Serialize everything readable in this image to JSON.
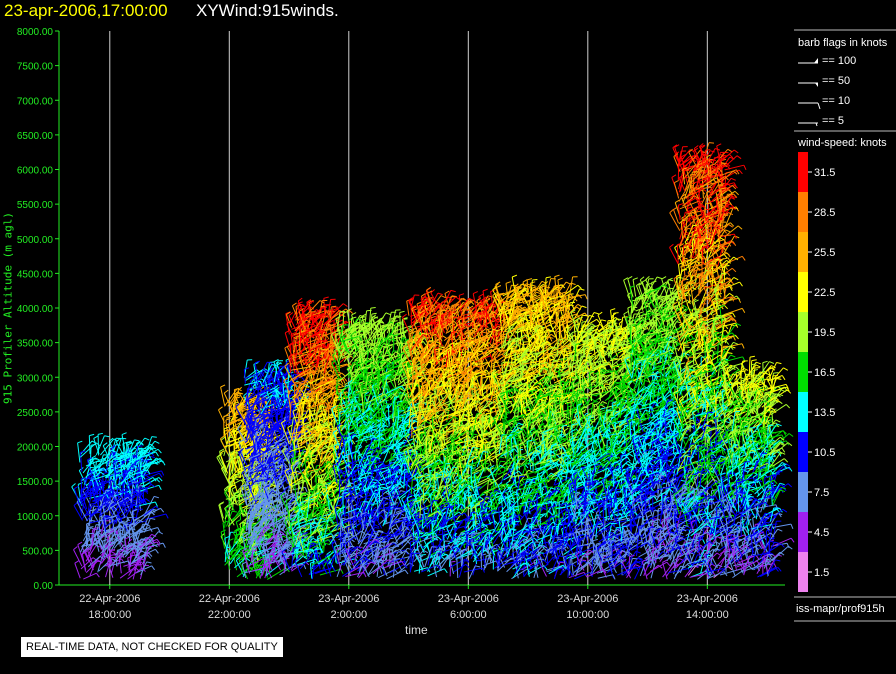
{
  "header": {
    "timestamp": "23-apr-2006,17:00:00",
    "plot_name": "XYWind:915winds."
  },
  "footer": {
    "qc_notice": "REAL-TIME DATA, NOT CHECKED FOR QUALITY",
    "source_label": "iss-mapr/prof915h"
  },
  "legend": {
    "barb_title": "barb flags in knots",
    "barbs": [
      {
        "label": "== 100",
        "type": "pennant"
      },
      {
        "label": "== 50",
        "type": "flag"
      },
      {
        "label": "== 10",
        "type": "full"
      },
      {
        "label": "== 5",
        "type": "half"
      }
    ],
    "speed_title": "wind-speed: knots",
    "bins": [
      {
        "label": "31.5",
        "color": "#ff0000"
      },
      {
        "label": "28.5",
        "color": "#ff7f00"
      },
      {
        "label": "25.5",
        "color": "#ffb000"
      },
      {
        "label": "22.5",
        "color": "#ffff00"
      },
      {
        "label": "19.5",
        "color": "#a6ff2a"
      },
      {
        "label": "16.5",
        "color": "#00dd00"
      },
      {
        "label": "13.5",
        "color": "#00ffff"
      },
      {
        "label": "10.5",
        "color": "#0000ff"
      },
      {
        "label": "7.5",
        "color": "#6495ed"
      },
      {
        "label": "4.5",
        "color": "#a020f0"
      },
      {
        "label": "1.5",
        "color": "#ee82ee"
      }
    ]
  },
  "chart_data": {
    "type": "scatter",
    "subtype": "wind-barb time-height",
    "title": "XYWind:915winds.",
    "xlabel": "time",
    "ylabel": "915 Profiler Altitude (m agl)",
    "ylim": [
      0,
      8000
    ],
    "yticks": [
      "0.00",
      "500.00",
      "1000.00",
      "1500.00",
      "2000.00",
      "2500.00",
      "3000.00",
      "3500.00",
      "4000.00",
      "4500.00",
      "5000.00",
      "5500.00",
      "6000.00",
      "6500.00",
      "7000.00",
      "7500.00",
      "8000.00"
    ],
    "xlim_hours": [
      -7.7,
      16.6
    ],
    "xticks": [
      {
        "hour": -6,
        "date": "22-Apr-2006",
        "time": "18:00:00"
      },
      {
        "hour": -2,
        "date": "22-Apr-2006",
        "time": "22:00:00"
      },
      {
        "hour": 2,
        "date": "23-Apr-2006",
        "time": "2:00:00"
      },
      {
        "hour": 6,
        "date": "23-Apr-2006",
        "time": "6:00:00"
      },
      {
        "hour": 10,
        "date": "23-Apr-2006",
        "time": "10:00:00"
      },
      {
        "hour": 14,
        "date": "23-Apr-2006",
        "time": "14:00:00"
      }
    ],
    "grid": "vertical at x ticks",
    "legend_placement": "right",
    "wind_regimes": [
      {
        "hours": [
          -7.0,
          -4.8
        ],
        "top_m": 1900,
        "speed_low": 2,
        "speed_high": 14
      },
      {
        "hours": [
          -2.2,
          -0.6
        ],
        "top_m": 2600,
        "speed_low": 12,
        "speed_high": 26
      },
      {
        "hours": [
          -1.5,
          0.2
        ],
        "top_m": 3000,
        "speed_low": 4,
        "speed_high": 12
      },
      {
        "hours": [
          0.0,
          1.6
        ],
        "top_m": 3900,
        "speed_low": 8,
        "speed_high": 32
      },
      {
        "hours": [
          1.6,
          4.0
        ],
        "top_m": 3700,
        "speed_low": 4,
        "speed_high": 20
      },
      {
        "hours": [
          4.0,
          7.0
        ],
        "top_m": 4000,
        "speed_low": 5,
        "speed_high": 30
      },
      {
        "hours": [
          7.0,
          9.5
        ],
        "top_m": 4200,
        "speed_low": 5,
        "speed_high": 26
      },
      {
        "hours": [
          9.5,
          11.4
        ],
        "top_m": 3700,
        "speed_low": 4,
        "speed_high": 22
      },
      {
        "hours": [
          11.4,
          13.0
        ],
        "top_m": 4200,
        "speed_low": 3,
        "speed_high": 20
      },
      {
        "hours": [
          13.0,
          14.6
        ],
        "top_m": 6100,
        "speed_low": 2,
        "speed_high": 32
      },
      {
        "hours": [
          14.6,
          16.2
        ],
        "top_m": 3000,
        "speed_low": 2,
        "speed_high": 22
      }
    ]
  }
}
